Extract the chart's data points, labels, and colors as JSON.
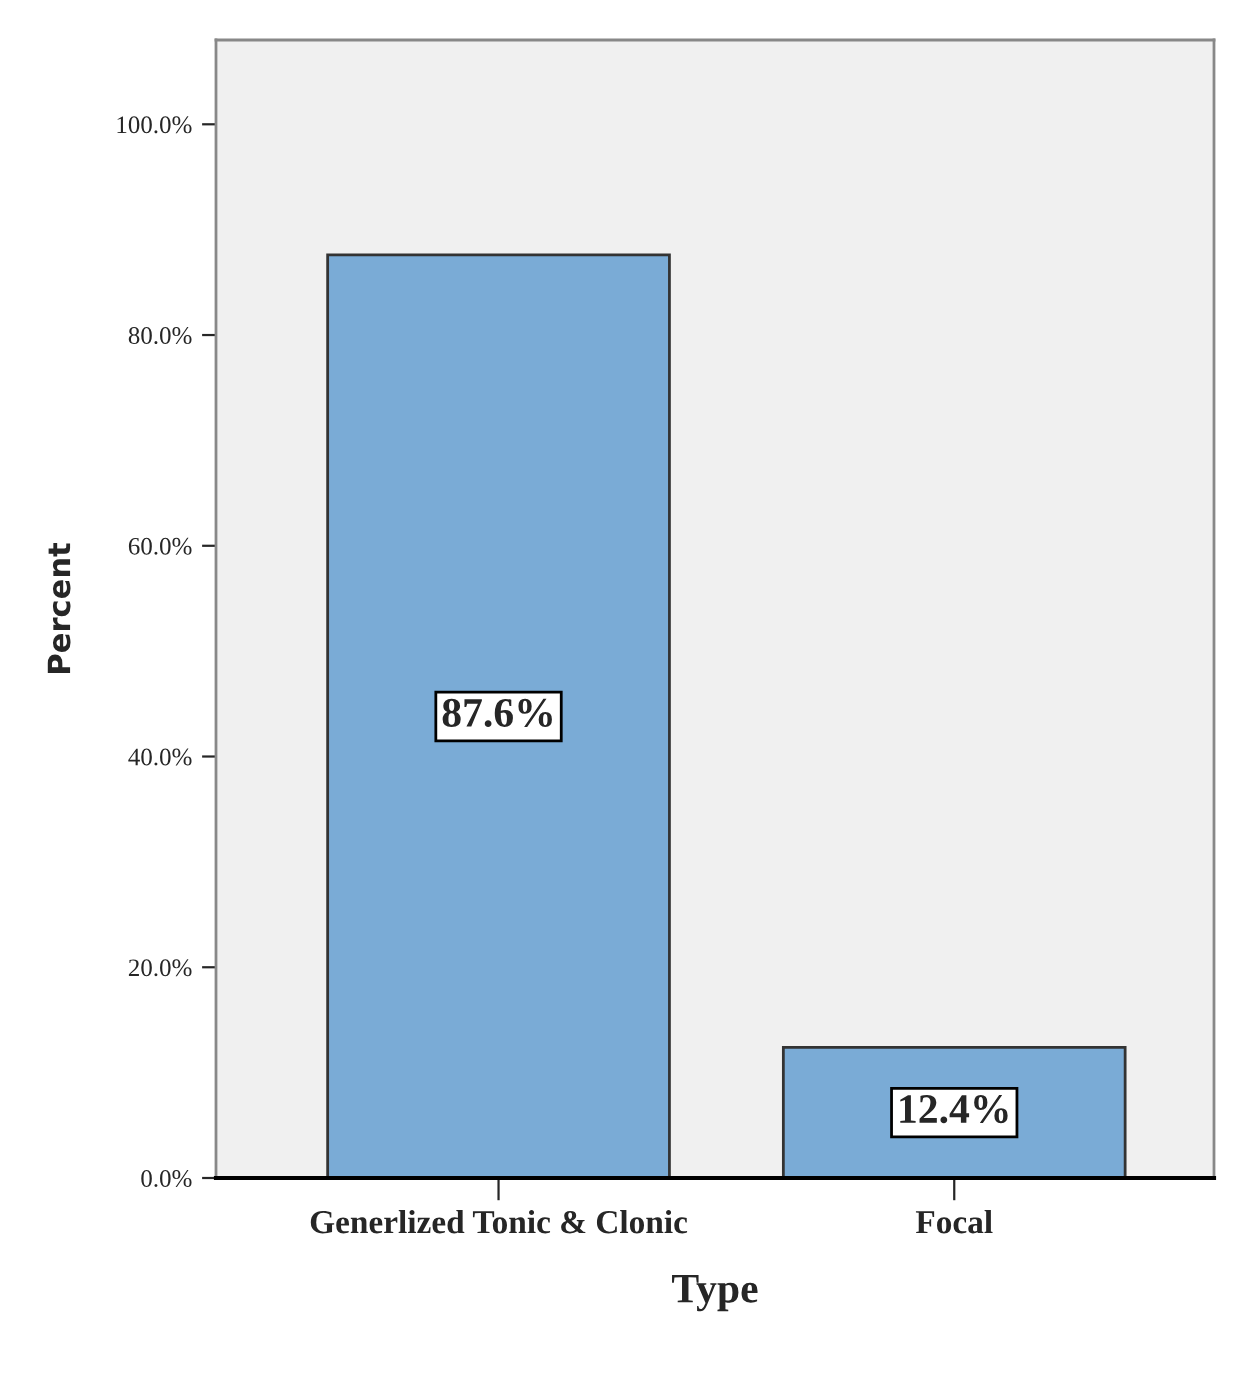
{
  "chart_data": {
    "type": "bar",
    "xlabel": "Type",
    "ylabel": "Percent",
    "categories": [
      "Generlized Tonic & Clonic",
      "Focal"
    ],
    "values": [
      87.6,
      12.4
    ],
    "value_labels": [
      "87.6%",
      "12.4%"
    ],
    "color": "#7aabd6",
    "ylim": [
      0,
      108
    ],
    "yticks": [
      {
        "value": 0,
        "label": "0.0%"
      },
      {
        "value": 20,
        "label": "20.0%"
      },
      {
        "value": 40,
        "label": "40.0%"
      },
      {
        "value": 60,
        "label": "60.0%"
      },
      {
        "value": 80,
        "label": "80.0%"
      },
      {
        "value": 100,
        "label": "100.0%"
      }
    ],
    "grid": false,
    "legend": false
  }
}
